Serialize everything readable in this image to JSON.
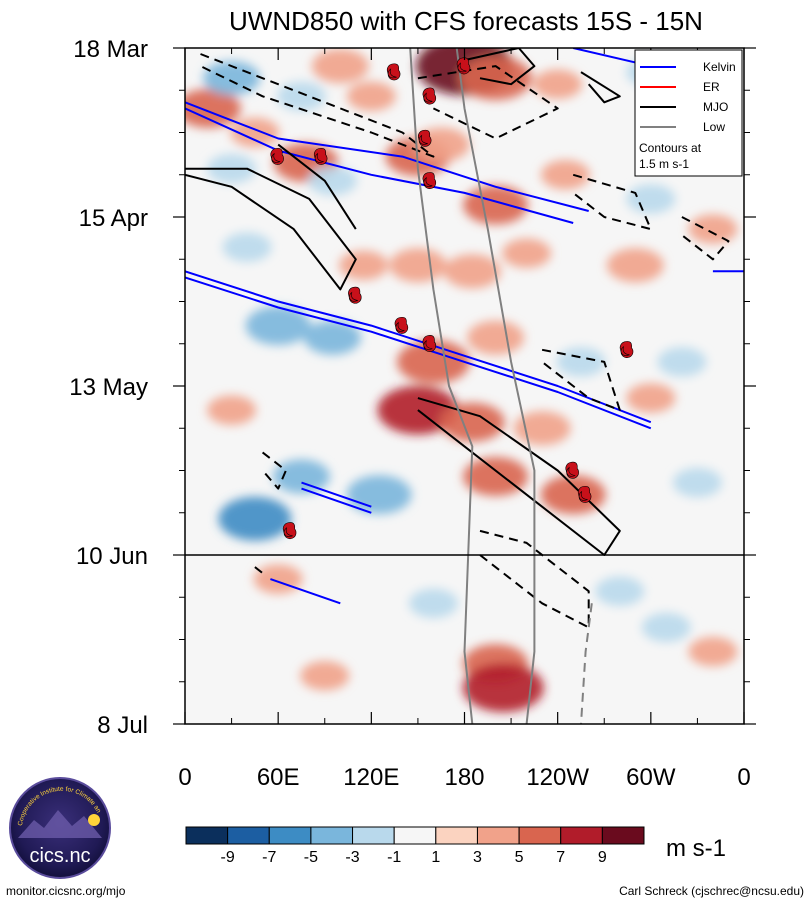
{
  "chart_data": {
    "type": "heatmap",
    "title": "UWND850 with CFS forecasts  15S - 15N",
    "x_tick_labels": [
      "0",
      "60E",
      "120E",
      "180",
      "120W",
      "60W",
      "0"
    ],
    "x_ticks_deg": [
      0,
      60,
      120,
      180,
      240,
      300,
      360
    ],
    "xlim_deg": [
      0,
      360
    ],
    "y_tick_labels": [
      "18 Mar",
      "15 Apr",
      "13 May",
      "10 Jun",
      "8 Jul"
    ],
    "y_ticks_day": [
      0,
      28,
      56,
      84,
      112
    ],
    "ylim_day": [
      0,
      112
    ],
    "forecast_start_day": 84,
    "colorbar": {
      "unit": "m s-1",
      "labels": [
        "-9",
        "-7",
        "-5",
        "-3",
        "-1",
        "1",
        "3",
        "5",
        "7",
        "9"
      ],
      "levels": [
        -11,
        -9,
        -7,
        -5,
        -3,
        -1,
        1,
        3,
        5,
        7,
        9,
        11
      ],
      "colors": [
        "#0b2f5c",
        "#1c5ea2",
        "#3d8cc4",
        "#7ab6dc",
        "#b9d9ec",
        "#f6f6f6",
        "#fbd3c0",
        "#f1a28a",
        "#d9654f",
        "#b11c2a",
        "#6a0b1e"
      ]
    },
    "anomalies": [
      {
        "lon": 15,
        "day": 10,
        "value": 5
      },
      {
        "lon": 30,
        "day": 5,
        "value": -4
      },
      {
        "lon": 45,
        "day": 14,
        "value": 3
      },
      {
        "lon": 75,
        "day": 8,
        "value": -3
      },
      {
        "lon": 100,
        "day": 3,
        "value": 4
      },
      {
        "lon": 120,
        "day": 8,
        "value": 3
      },
      {
        "lon": 180,
        "day": 3,
        "value": 9
      },
      {
        "lon": 200,
        "day": 5,
        "value": 6
      },
      {
        "lon": 240,
        "day": 6,
        "value": 3
      },
      {
        "lon": 300,
        "day": 4,
        "value": -3
      },
      {
        "lon": 30,
        "day": 20,
        "value": -3
      },
      {
        "lon": 78,
        "day": 19,
        "value": 5
      },
      {
        "lon": 95,
        "day": 22,
        "value": -3
      },
      {
        "lon": 150,
        "day": 18,
        "value": 5
      },
      {
        "lon": 165,
        "day": 16,
        "value": 4
      },
      {
        "lon": 200,
        "day": 26,
        "value": 5
      },
      {
        "lon": 245,
        "day": 21,
        "value": 3
      },
      {
        "lon": 300,
        "day": 25,
        "value": -3
      },
      {
        "lon": 40,
        "day": 33,
        "value": -3
      },
      {
        "lon": 115,
        "day": 36,
        "value": 3
      },
      {
        "lon": 150,
        "day": 36,
        "value": 4
      },
      {
        "lon": 185,
        "day": 37,
        "value": 4
      },
      {
        "lon": 220,
        "day": 34,
        "value": 3
      },
      {
        "lon": 290,
        "day": 36,
        "value": 4
      },
      {
        "lon": 340,
        "day": 30,
        "value": 3
      },
      {
        "lon": 60,
        "day": 46,
        "value": -5
      },
      {
        "lon": 95,
        "day": 48,
        "value": -4
      },
      {
        "lon": 160,
        "day": 52,
        "value": 6
      },
      {
        "lon": 200,
        "day": 48,
        "value": 4
      },
      {
        "lon": 255,
        "day": 52,
        "value": -3
      },
      {
        "lon": 320,
        "day": 52,
        "value": -3
      },
      {
        "lon": 30,
        "day": 60,
        "value": 3
      },
      {
        "lon": 150,
        "day": 60,
        "value": 7
      },
      {
        "lon": 185,
        "day": 62,
        "value": 5
      },
      {
        "lon": 230,
        "day": 63,
        "value": 4
      },
      {
        "lon": 300,
        "day": 58,
        "value": 3
      },
      {
        "lon": 75,
        "day": 71,
        "value": -4
      },
      {
        "lon": 125,
        "day": 74,
        "value": -5
      },
      {
        "lon": 45,
        "day": 78,
        "value": -6
      },
      {
        "lon": 200,
        "day": 71,
        "value": 5
      },
      {
        "lon": 250,
        "day": 74,
        "value": 5
      },
      {
        "lon": 330,
        "day": 72,
        "value": -3
      },
      {
        "lon": 60,
        "day": 88,
        "value": 3
      },
      {
        "lon": 160,
        "day": 92,
        "value": -3
      },
      {
        "lon": 280,
        "day": 90,
        "value": -3
      },
      {
        "lon": 310,
        "day": 96,
        "value": -3
      },
      {
        "lon": 200,
        "day": 102,
        "value": 5
      },
      {
        "lon": 205,
        "day": 106,
        "value": 7
      },
      {
        "lon": 90,
        "day": 104,
        "value": 3
      },
      {
        "lon": 340,
        "day": 100,
        "value": 3
      }
    ],
    "contour_lines": [
      {
        "series": "Kelvin",
        "color": "#0000ff",
        "dashed": false,
        "path": [
          [
            0,
            10
          ],
          [
            60,
            17
          ],
          [
            120,
            21
          ],
          [
            180,
            24
          ],
          [
            250,
            29
          ]
        ]
      },
      {
        "series": "Kelvin",
        "color": "#0000ff",
        "dashed": false,
        "path": [
          [
            0,
            9
          ],
          [
            60,
            15
          ],
          [
            140,
            18
          ],
          [
            200,
            23
          ],
          [
            260,
            27
          ]
        ]
      },
      {
        "series": "Kelvin",
        "color": "#0000ff",
        "dashed": false,
        "path": [
          [
            250,
            0
          ],
          [
            300,
            3
          ]
        ]
      },
      {
        "series": "Kelvin",
        "color": "#0000ff",
        "dashed": false,
        "path": [
          [
            340,
            37
          ],
          [
            360,
            37
          ]
        ]
      },
      {
        "series": "Kelvin",
        "color": "#0000ff",
        "dashed": false,
        "path": [
          [
            0,
            37
          ],
          [
            60,
            42
          ],
          [
            120,
            46
          ],
          [
            180,
            51
          ],
          [
            240,
            56
          ],
          [
            300,
            62
          ]
        ]
      },
      {
        "series": "Kelvin",
        "color": "#0000ff",
        "dashed": false,
        "path": [
          [
            0,
            38
          ],
          [
            60,
            43
          ],
          [
            120,
            47
          ],
          [
            180,
            52
          ],
          [
            240,
            57
          ],
          [
            300,
            63
          ]
        ]
      },
      {
        "series": "Kelvin",
        "color": "#0000ff",
        "dashed": false,
        "path": [
          [
            75,
            72
          ],
          [
            120,
            76
          ]
        ]
      },
      {
        "series": "Kelvin",
        "color": "#0000ff",
        "dashed": false,
        "path": [
          [
            75,
            73
          ],
          [
            120,
            77
          ]
        ]
      },
      {
        "series": "Kelvin",
        "color": "#0000ff",
        "dashed": false,
        "path": [
          [
            55,
            88
          ],
          [
            100,
            92
          ]
        ]
      },
      {
        "series": "MJO",
        "color": "#000000",
        "dashed": false,
        "path": [
          [
            0,
            20
          ],
          [
            40,
            20
          ],
          [
            80,
            25
          ],
          [
            110,
            35
          ],
          [
            100,
            40
          ],
          [
            70,
            30
          ],
          [
            30,
            23
          ],
          [
            0,
            21
          ]
        ]
      },
      {
        "series": "MJO",
        "color": "#000000",
        "dashed": false,
        "path": [
          [
            60,
            16
          ],
          [
            90,
            22
          ],
          [
            110,
            30
          ]
        ]
      },
      {
        "series": "MJO",
        "color": "#000000",
        "dashed": false,
        "path": [
          [
            180,
            2
          ],
          [
            215,
            0
          ],
          [
            225,
            3
          ],
          [
            210,
            6
          ],
          [
            190,
            5
          ]
        ]
      },
      {
        "series": "MJO",
        "color": "#000000",
        "dashed": false,
        "path": [
          [
            150,
            58
          ],
          [
            190,
            61
          ],
          [
            240,
            70
          ],
          [
            280,
            80
          ],
          [
            270,
            84
          ],
          [
            230,
            76
          ],
          [
            180,
            66
          ],
          [
            150,
            60
          ]
        ]
      },
      {
        "series": "MJO",
        "color": "#000000",
        "dashed": false,
        "path": [
          [
            255,
            4
          ],
          [
            280,
            8
          ],
          [
            270,
            9
          ],
          [
            260,
            6
          ]
        ]
      },
      {
        "series": "MJO",
        "color": "#000000",
        "dashed": true,
        "path": [
          [
            10,
            1
          ],
          [
            80,
            8
          ],
          [
            140,
            14
          ],
          [
            160,
            18
          ],
          [
            120,
            14
          ],
          [
            50,
            8
          ],
          [
            10,
            3
          ]
        ]
      },
      {
        "series": "MJO",
        "color": "#000000",
        "dashed": true,
        "path": [
          [
            150,
            5
          ],
          [
            200,
            3
          ],
          [
            240,
            10
          ],
          [
            200,
            15
          ],
          [
            160,
            10
          ]
        ]
      },
      {
        "series": "MJO",
        "color": "#000000",
        "dashed": true,
        "path": [
          [
            250,
            21
          ],
          [
            290,
            24
          ],
          [
            300,
            30
          ],
          [
            270,
            28
          ],
          [
            250,
            24
          ]
        ]
      },
      {
        "series": "MJO",
        "color": "#000000",
        "dashed": true,
        "path": [
          [
            320,
            28
          ],
          [
            350,
            32
          ],
          [
            340,
            35
          ],
          [
            320,
            31
          ]
        ]
      },
      {
        "series": "MJO",
        "color": "#000000",
        "dashed": true,
        "path": [
          [
            230,
            50
          ],
          [
            270,
            52
          ],
          [
            280,
            60
          ],
          [
            260,
            58
          ],
          [
            230,
            52
          ]
        ]
      },
      {
        "series": "MJO",
        "color": "#000000",
        "dashed": true,
        "path": [
          [
            50,
            67
          ],
          [
            65,
            70
          ],
          [
            60,
            73
          ],
          [
            50,
            70
          ]
        ]
      },
      {
        "series": "MJO",
        "color": "#000000",
        "dashed": true,
        "path": [
          [
            190,
            80
          ],
          [
            220,
            82
          ],
          [
            260,
            90
          ],
          [
            260,
            96
          ],
          [
            230,
            92
          ],
          [
            190,
            84
          ]
        ]
      },
      {
        "series": "MJO",
        "color": "#000000",
        "dashed": true,
        "path": [
          [
            45,
            86
          ],
          [
            50,
            87
          ]
        ]
      },
      {
        "series": "Low",
        "color": "#808080",
        "dashed": false,
        "path": [
          [
            145,
            0
          ],
          [
            150,
            20
          ],
          [
            160,
            40
          ],
          [
            170,
            56
          ],
          [
            185,
            66
          ],
          [
            180,
            100
          ],
          [
            185,
            112
          ]
        ]
      },
      {
        "series": "Low",
        "color": "#808080",
        "dashed": false,
        "path": [
          [
            175,
            0
          ],
          [
            180,
            10
          ],
          [
            195,
            30
          ],
          [
            210,
            52
          ],
          [
            225,
            70
          ],
          [
            225,
            100
          ],
          [
            220,
            112
          ]
        ]
      },
      {
        "series": "Low",
        "color": "#808080",
        "dashed": true,
        "path": [
          [
            262,
            92
          ],
          [
            258,
            100
          ],
          [
            255,
            112
          ]
        ]
      }
    ],
    "tropical_cyclones": [
      {
        "lon": 135,
        "day": 4
      },
      {
        "lon": 180,
        "day": 3
      },
      {
        "lon": 158,
        "day": 8
      },
      {
        "lon": 155,
        "day": 15
      },
      {
        "lon": 158,
        "day": 22
      },
      {
        "lon": 60,
        "day": 18
      },
      {
        "lon": 88,
        "day": 18
      },
      {
        "lon": 110,
        "day": 41
      },
      {
        "lon": 140,
        "day": 46
      },
      {
        "lon": 158,
        "day": 49
      },
      {
        "lon": 285,
        "day": 50
      },
      {
        "lon": 250,
        "day": 70
      },
      {
        "lon": 258,
        "day": 74
      },
      {
        "lon": 68,
        "day": 80
      }
    ],
    "legend": {
      "position": "top-right",
      "entries": [
        {
          "label": "Kelvin",
          "color": "#0000ff"
        },
        {
          "label": "ER",
          "color": "#ff0000"
        },
        {
          "label": "MJO",
          "color": "#000000"
        },
        {
          "label": "Low",
          "color": "#808080"
        }
      ],
      "note_line1": "Contours at",
      "note_line2": "1.5 m s-1"
    }
  },
  "footer": {
    "logo_text": "cics.nc",
    "logo_arc_text": "Cooperative Institute for Climate and Satellites",
    "left": "monitor.cicsnc.org/mjo",
    "right": "Carl Schreck (cjschrec@ncsu.edu)"
  }
}
